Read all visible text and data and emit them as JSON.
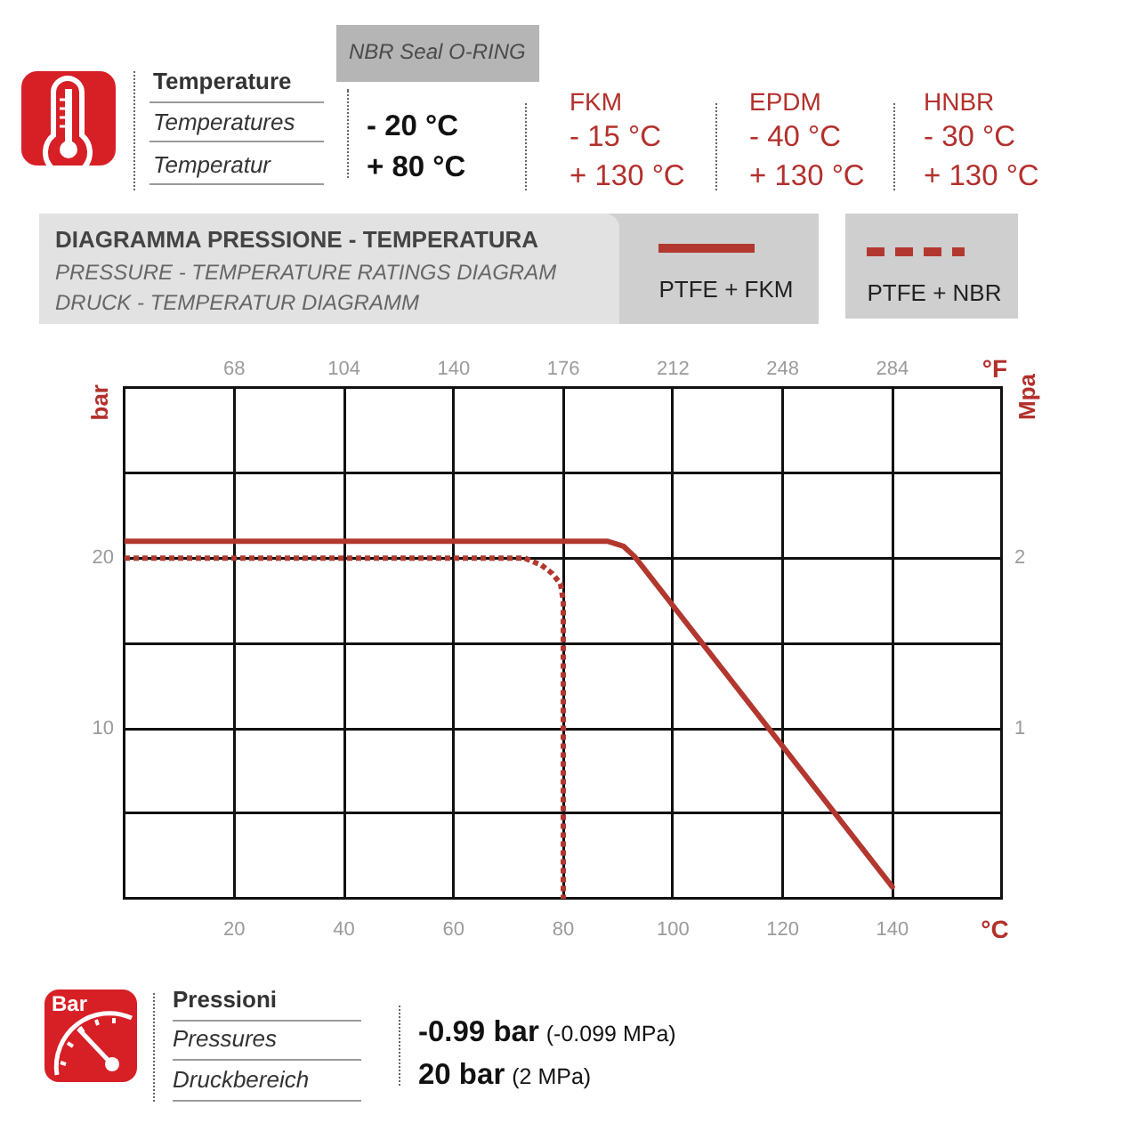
{
  "chart_data": {
    "type": "line",
    "title": "DIAGRAMMA PRESSIONE - TEMPERATURA",
    "subtitle": "PRESSURE - TEMPERATURE RATINGS DIAGRAM",
    "xlabel": "°C",
    "x2label": "°F",
    "ylabel": "bar",
    "y2label": "Mpa",
    "xlim": [
      0,
      160
    ],
    "xticks": [
      20,
      40,
      60,
      80,
      100,
      120,
      140
    ],
    "x2lim": [
      32,
      320
    ],
    "x2ticks": [
      68,
      104,
      140,
      176,
      212,
      248,
      284
    ],
    "ylim": [
      0,
      30
    ],
    "yticks": [
      {
        "value": 5,
        "label": null
      },
      10,
      {
        "value": 15,
        "label": null
      },
      20,
      {
        "value": 25,
        "label": null
      }
    ],
    "y2lim": [
      0,
      3
    ],
    "y2ticks": [
      1,
      2
    ],
    "grid": true,
    "legend": "top right",
    "marker": "none",
    "series": [
      {
        "name": "PTFE + FKM",
        "color": "#b2382f",
        "line_style": "solid",
        "x": [
          0,
          88,
          91,
          93,
          140
        ],
        "values": [
          21,
          21,
          20.7,
          20.1,
          0.7
        ]
      },
      {
        "name": "PTFE + NBR",
        "color": "#b2382f",
        "line_style": "dashed",
        "x": [
          0,
          73,
          76,
          78,
          79.5,
          80,
          80
        ],
        "values": [
          20,
          20,
          19.6,
          19.1,
          18.5,
          17.5,
          0
        ]
      }
    ],
    "annotations": [
      "NBR Seal O-RING",
      "Temperature",
      "Temperatures",
      "Temperatur",
      "- 20 °C",
      "+ 80 °C",
      "FKM",
      "- 15 °C",
      "+ 130 °C",
      "EPDM",
      "- 40 °C",
      "+ 130 °C",
      "HNBR",
      "- 30 °C",
      "+ 130 °C",
      "DRUCK - TEMPERATUR DIAGRAMM",
      "Pressioni",
      "Pressures",
      "Druckbereich",
      "-0.99 bar",
      "(-0.099 MPa)",
      "20 bar",
      "(2 MPa)",
      "Bar"
    ]
  }
}
